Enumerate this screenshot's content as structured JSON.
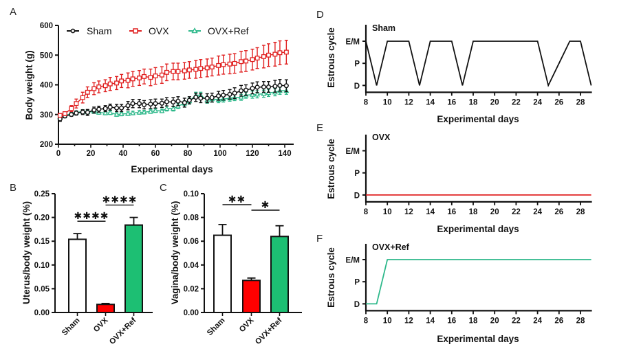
{
  "panel_letters": [
    "A",
    "B",
    "C",
    "D",
    "E",
    "F"
  ],
  "colors": {
    "sham": "#111111",
    "ovx": "#e02020",
    "ovx_ref": "#2db88a",
    "ovx_bar": "#ff0000",
    "ovx_ref_bar": "#1dbf73",
    "sham_bar": "#ffffff"
  },
  "chart_data": [
    {
      "id": "A",
      "type": "line",
      "title": "",
      "xlabel": "Experimental days",
      "ylabel": "Body weight (g)",
      "xlim": [
        0,
        140
      ],
      "ylim": [
        200,
        600
      ],
      "xticks": [
        0,
        20,
        40,
        60,
        80,
        100,
        120,
        140
      ],
      "yticks": [
        200,
        300,
        400,
        500,
        600
      ],
      "legend": "top-left",
      "x": [
        1,
        4,
        8,
        11,
        15,
        18,
        22,
        25,
        29,
        32,
        36,
        39,
        43,
        46,
        50,
        53,
        57,
        60,
        64,
        67,
        71,
        74,
        78,
        81,
        85,
        88,
        92,
        95,
        99,
        102,
        106,
        109,
        113,
        116,
        120,
        123,
        127,
        130,
        134,
        137,
        141
      ],
      "series": [
        {
          "name": "Sham",
          "marker": "circle",
          "values": [
            285,
            295,
            300,
            305,
            308,
            307,
            315,
            318,
            320,
            325,
            322,
            322,
            330,
            337,
            337,
            333,
            335,
            337,
            338,
            343,
            342,
            345,
            340,
            348,
            358,
            355,
            355,
            357,
            363,
            365,
            368,
            372,
            380,
            382,
            388,
            392,
            393,
            393,
            395,
            398,
            397
          ],
          "errors": [
            8,
            6,
            6,
            7,
            8,
            10,
            10,
            10,
            10,
            10,
            12,
            12,
            14,
            14,
            14,
            14,
            15,
            15,
            14,
            14,
            15,
            15,
            15,
            12,
            14,
            15,
            15,
            15,
            15,
            16,
            16,
            18,
            18,
            18,
            18,
            18,
            18,
            18,
            20,
            20,
            20
          ]
        },
        {
          "name": "OVX",
          "marker": "square",
          "values": [
            297,
            303,
            320,
            337,
            357,
            375,
            387,
            393,
            397,
            403,
            406,
            413,
            415,
            420,
            423,
            428,
            425,
            430,
            433,
            442,
            445,
            445,
            447,
            450,
            452,
            455,
            457,
            460,
            465,
            468,
            470,
            472,
            478,
            480,
            485,
            490,
            495,
            500,
            503,
            508,
            510
          ],
          "errors": [
            5,
            6,
            10,
            15,
            18,
            18,
            20,
            20,
            20,
            22,
            22,
            22,
            25,
            25,
            25,
            25,
            28,
            28,
            28,
            28,
            28,
            28,
            28,
            28,
            30,
            30,
            30,
            30,
            32,
            32,
            33,
            33,
            35,
            35,
            35,
            35,
            38,
            38,
            40,
            40,
            40
          ]
        },
        {
          "name": "OVX+Ref",
          "marker": "triangle",
          "values": [
            292,
            297,
            303,
            307,
            310,
            308,
            310,
            307,
            305,
            306,
            300,
            302,
            303,
            305,
            307,
            308,
            310,
            313,
            312,
            320,
            320,
            328,
            338,
            345,
            365,
            365,
            348,
            352,
            350,
            352,
            355,
            357,
            358,
            365,
            367,
            368,
            370,
            373,
            375,
            380,
            380
          ],
          "errors": [
            5,
            5,
            5,
            5,
            6,
            6,
            6,
            6,
            6,
            6,
            6,
            6,
            6,
            6,
            6,
            6,
            6,
            6,
            6,
            8,
            8,
            8,
            8,
            10,
            10,
            10,
            10,
            10,
            10,
            10,
            10,
            10,
            10,
            10,
            12,
            12,
            12,
            12,
            12,
            12,
            12
          ]
        }
      ]
    },
    {
      "id": "B",
      "type": "bar",
      "ylabel": "Uterus/body weight (%)",
      "xlabel": "",
      "ylim": [
        0,
        0.25
      ],
      "yticks": [
        "0.00",
        "0.05",
        "0.10",
        "0.15",
        "0.20",
        "0.25"
      ],
      "categories": [
        "Sham",
        "OVX",
        "OVX+Ref"
      ],
      "values": [
        0.154,
        0.017,
        0.184
      ],
      "errors": [
        0.012,
        0.002,
        0.016
      ],
      "significance": [
        {
          "from": 0,
          "to": 1,
          "label": "****"
        },
        {
          "from": 1,
          "to": 2,
          "label": "****"
        }
      ]
    },
    {
      "id": "C",
      "type": "bar",
      "ylabel": "Vagina/body weight (%)",
      "xlabel": "",
      "ylim": [
        0,
        0.1
      ],
      "yticks": [
        "0.00",
        "0.02",
        "0.04",
        "0.06",
        "0.08",
        "0.10"
      ],
      "categories": [
        "Sham",
        "OVX",
        "OVX+Ref"
      ],
      "values": [
        0.065,
        0.027,
        0.064
      ],
      "errors": [
        0.009,
        0.002,
        0.009
      ],
      "significance": [
        {
          "from": 0,
          "to": 1,
          "label": "**"
        },
        {
          "from": 1,
          "to": 2,
          "label": "*"
        }
      ]
    },
    {
      "id": "D",
      "type": "line",
      "group_label": "Sham",
      "xlabel": "Experimental days",
      "ylabel": "Estrous cycle",
      "xlim": [
        8,
        29
      ],
      "xticks": [
        8,
        10,
        12,
        14,
        16,
        18,
        20,
        22,
        24,
        26,
        28
      ],
      "ycategories": [
        "D",
        "P",
        "E/M"
      ],
      "x": [
        8,
        9,
        10,
        11,
        12,
        13,
        14,
        15,
        16,
        17,
        18,
        19,
        20,
        21,
        22,
        23,
        24,
        25,
        26,
        27,
        28,
        29
      ],
      "values": [
        "E/M",
        "D",
        "E/M",
        "E/M",
        "E/M",
        "D",
        "E/M",
        "E/M",
        "E/M",
        "D",
        "E/M",
        "E/M",
        "E/M",
        "E/M",
        "E/M",
        "E/M",
        "E/M",
        "D",
        "P",
        "E/M",
        "E/M",
        "D"
      ]
    },
    {
      "id": "E",
      "type": "line",
      "group_label": "OVX",
      "xlabel": "Experimental days",
      "ylabel": "Estrous cycle",
      "xlim": [
        8,
        29
      ],
      "xticks": [
        8,
        10,
        12,
        14,
        16,
        18,
        20,
        22,
        24,
        26,
        28
      ],
      "ycategories": [
        "D",
        "P",
        "E/M"
      ],
      "x": [
        8,
        29
      ],
      "values": [
        "D",
        "D"
      ]
    },
    {
      "id": "F",
      "type": "line",
      "group_label": "OVX+Ref",
      "xlabel": "Experimental days",
      "ylabel": "Estrous cycle",
      "xlim": [
        8,
        29
      ],
      "xticks": [
        8,
        10,
        12,
        14,
        16,
        18,
        20,
        22,
        24,
        26,
        28
      ],
      "ycategories": [
        "D",
        "P",
        "E/M"
      ],
      "x": [
        8,
        9,
        10,
        29
      ],
      "values": [
        "D",
        "D",
        "E/M",
        "E/M"
      ]
    }
  ]
}
